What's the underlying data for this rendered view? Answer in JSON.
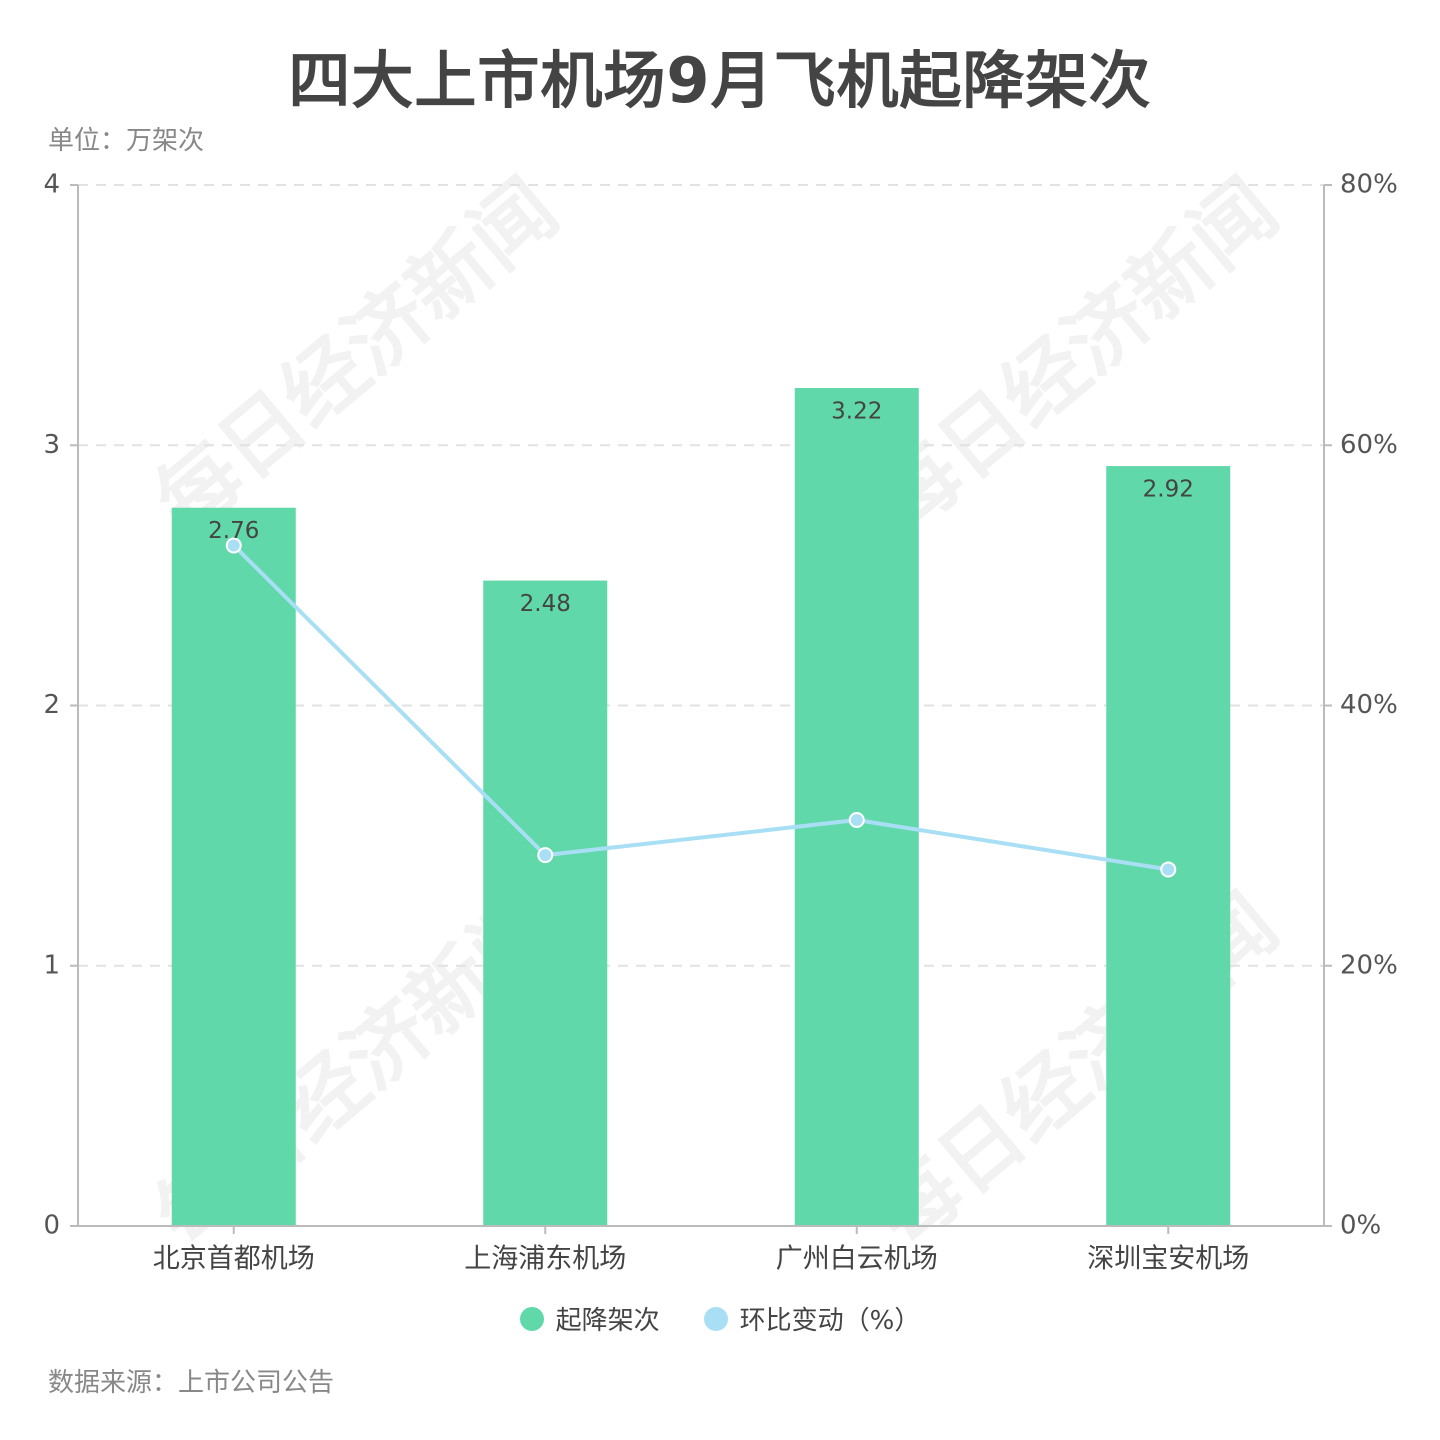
{
  "header": {
    "title": "四大上市机场9月飞机起降架次",
    "unit": "单位：万架次"
  },
  "footer": {
    "source": "数据来源：上市公司公告"
  },
  "watermark": "每日经济新闻",
  "colors": {
    "bar": "#61d8a9",
    "line": "#a9dff5",
    "axis": "#bbbbbb",
    "grid": "#e2e2e2",
    "text": "#555555"
  },
  "chart_data": {
    "type": "bar",
    "categories": [
      "北京首都机场",
      "上海浦东机场",
      "广州白云机场",
      "深圳宝安机场"
    ],
    "series": [
      {
        "name": "起降架次",
        "type": "bar",
        "axis": "left",
        "values": [
          2.76,
          2.48,
          3.22,
          2.92
        ],
        "labels": [
          "2.76",
          "2.48",
          "3.22",
          "2.92"
        ]
      },
      {
        "name": "环比变动（%）",
        "type": "line",
        "axis": "right",
        "values": [
          52.3,
          28.5,
          31.2,
          27.4
        ]
      }
    ],
    "y_left": {
      "min": 0,
      "max": 4,
      "ticks": [
        "0",
        "1",
        "2",
        "3",
        "4"
      ]
    },
    "y_right": {
      "min": 0,
      "max": 80,
      "ticks": [
        "0%",
        "20%",
        "40%",
        "60%",
        "80%"
      ]
    },
    "grid": true,
    "legend_position": "bottom"
  }
}
